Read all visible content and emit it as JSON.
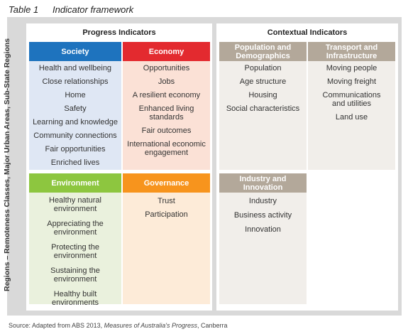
{
  "title": {
    "number": "Table 1",
    "text": "Indicator framework"
  },
  "side_label": "Regions – Remoteness Classes, Major Urban Areas, Sub-State Regions",
  "progress": {
    "heading": "Progress Indicators",
    "society": {
      "header": "Society",
      "items": [
        "Health and wellbeing",
        "Close relationships",
        "Home",
        "Safety",
        "Learning and knowledge",
        "Community connections",
        "Fair opportunities",
        "Enriched lives"
      ]
    },
    "economy": {
      "header": "Economy",
      "items": [
        "Opportunities",
        "Jobs",
        "A  resilient economy",
        "Enhanced living standards",
        "Fair outcomes",
        "International economic engagement"
      ]
    },
    "environment": {
      "header": "Environment",
      "items": [
        "Healthy natural environment",
        "Appreciating the environment",
        "Protecting the environment",
        "Sustaining the environment",
        "Healthy built environments"
      ]
    },
    "governance": {
      "header": "Governance",
      "items": [
        "Trust",
        "Participation"
      ]
    }
  },
  "contextual": {
    "heading": "Contextual Indicators",
    "population": {
      "header": "Population and Demographics",
      "items": [
        "Population",
        "Age structure",
        "Housing",
        "Social characteristics"
      ]
    },
    "transport": {
      "header": "Transport and Infrastructure",
      "items": [
        "Moving people",
        "Moving freight",
        "Communications and utilities",
        "Land use"
      ]
    },
    "industry": {
      "header": "Industry and Innovation",
      "items": [
        "Industry",
        "Business activity",
        "Innovation"
      ]
    }
  },
  "source": {
    "prefix": "Source: Adapted from ABS 2013, ",
    "italic": "Measures of Australia's Progress",
    "suffix": ", Canberra"
  },
  "colors": {
    "society": "#1e73be",
    "society_bg": "#dfe7f4",
    "economy": "#e32a2f",
    "economy_bg": "#fbe1d6",
    "environment": "#8dc63f",
    "environment_bg": "#eaf1dd",
    "governance": "#f7941d",
    "governance_bg": "#fdebd8",
    "contextual": "#b3a89a",
    "contextual_bg": "#f1eeea",
    "frame": "#d9d9d9"
  }
}
